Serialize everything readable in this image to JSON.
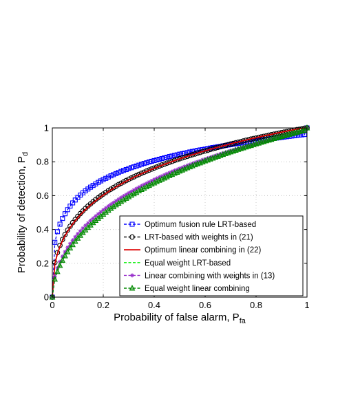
{
  "chart_data": {
    "type": "line",
    "xlabel": "Probability of false alarm, P",
    "xlabel_sub": "fa",
    "ylabel": "Probability of detection, P",
    "ylabel_sub": "d",
    "xlim": [
      0,
      1
    ],
    "ylim": [
      0,
      1
    ],
    "xticks": [
      "0",
      "0.2",
      "0.4",
      "0.6",
      "0.8",
      "1"
    ],
    "yticks": [
      "0",
      "0.2",
      "0.4",
      "0.6",
      "0.8",
      "1"
    ],
    "grid": true,
    "legend_position": "bottom-right",
    "x": [
      0,
      0.01,
      0.02,
      0.03,
      0.04,
      0.05,
      0.06,
      0.07,
      0.08,
      0.09,
      0.1,
      0.11,
      0.12,
      0.13,
      0.14,
      0.15,
      0.16,
      0.17,
      0.18,
      0.19,
      0.2,
      0.21,
      0.22,
      0.23,
      0.24,
      0.25,
      0.26,
      0.27,
      0.28,
      0.29,
      0.3,
      0.31,
      0.32,
      0.33,
      0.34,
      0.35,
      0.36,
      0.37,
      0.38,
      0.39,
      0.4,
      0.41,
      0.42,
      0.43,
      0.44,
      0.45,
      0.46,
      0.47,
      0.48,
      0.49,
      0.5,
      0.51,
      0.52,
      0.53,
      0.54,
      0.55,
      0.56,
      0.57,
      0.58,
      0.59,
      0.6,
      0.61,
      0.62,
      0.63,
      0.64,
      0.65,
      0.66,
      0.67,
      0.68,
      0.69,
      0.7,
      0.71,
      0.72,
      0.73,
      0.74,
      0.75,
      0.76,
      0.77,
      0.78,
      0.79,
      0.8,
      0.81,
      0.82,
      0.83,
      0.84,
      0.85,
      0.86,
      0.87,
      0.88,
      0.89,
      0.9,
      0.91,
      0.92,
      0.93,
      0.94,
      0.95,
      0.96,
      0.97,
      0.98,
      0.99,
      1
    ],
    "series": [
      {
        "name": "Optimum fusion rule LRT-based",
        "color": "#0000ff",
        "dash": "dashed",
        "marker": "square",
        "values": [
          0,
          0.324,
          0.387,
          0.431,
          0.465,
          0.493,
          0.517,
          0.538,
          0.557,
          0.574,
          0.589,
          0.603,
          0.616,
          0.628,
          0.639,
          0.65,
          0.66,
          0.669,
          0.678,
          0.687,
          0.695,
          0.702,
          0.71,
          0.717,
          0.724,
          0.73,
          0.737,
          0.743,
          0.749,
          0.754,
          0.76,
          0.765,
          0.77,
          0.775,
          0.78,
          0.785,
          0.79,
          0.794,
          0.799,
          0.803,
          0.807,
          0.811,
          0.815,
          0.819,
          0.823,
          0.827,
          0.831,
          0.834,
          0.838,
          0.841,
          0.845,
          0.848,
          0.851,
          0.854,
          0.858,
          0.861,
          0.864,
          0.867,
          0.87,
          0.872,
          0.875,
          0.878,
          0.881,
          0.884,
          0.886,
          0.889,
          0.891,
          0.894,
          0.896,
          0.899,
          0.901,
          0.904,
          0.906,
          0.909,
          0.911,
          0.913,
          0.915,
          0.918,
          0.92,
          0.922,
          0.924,
          0.926,
          0.928,
          0.93,
          0.932,
          0.934,
          0.936,
          0.938,
          0.94,
          0.942,
          0.944,
          0.946,
          0.948,
          0.95,
          0.952,
          0.954,
          0.956,
          0.958,
          0.959,
          0.961,
          1
        ]
      },
      {
        "name": "LRT-based with weights in (21)",
        "color": "#000000",
        "dash": "dashed",
        "marker": "circle",
        "values": [
          0,
          0.205,
          0.263,
          0.306,
          0.341,
          0.37,
          0.396,
          0.419,
          0.44,
          0.459,
          0.477,
          0.494,
          0.509,
          0.524,
          0.538,
          0.551,
          0.564,
          0.576,
          0.587,
          0.598,
          0.609,
          0.619,
          0.629,
          0.638,
          0.647,
          0.656,
          0.665,
          0.673,
          0.681,
          0.689,
          0.697,
          0.704,
          0.711,
          0.718,
          0.725,
          0.732,
          0.738,
          0.745,
          0.751,
          0.757,
          0.763,
          0.769,
          0.775,
          0.781,
          0.786,
          0.792,
          0.797,
          0.802,
          0.808,
          0.813,
          0.818,
          0.823,
          0.828,
          0.832,
          0.837,
          0.842,
          0.846,
          0.851,
          0.855,
          0.86,
          0.864,
          0.868,
          0.873,
          0.877,
          0.881,
          0.885,
          0.889,
          0.893,
          0.897,
          0.901,
          0.905,
          0.908,
          0.912,
          0.916,
          0.919,
          0.923,
          0.927,
          0.93,
          0.934,
          0.937,
          0.94,
          0.944,
          0.947,
          0.95,
          0.953,
          0.957,
          0.96,
          0.963,
          0.966,
          0.969,
          0.972,
          0.975,
          0.978,
          0.981,
          0.984,
          0.987,
          0.99,
          0.992,
          0.995,
          0.998,
          1
        ]
      },
      {
        "name": "Optimum linear combining in (22)",
        "color": "#dd0000",
        "dash": "solid",
        "marker": "none",
        "values": [
          0,
          0.198,
          0.255,
          0.298,
          0.333,
          0.362,
          0.388,
          0.411,
          0.432,
          0.451,
          0.469,
          0.486,
          0.502,
          0.517,
          0.531,
          0.544,
          0.557,
          0.569,
          0.581,
          0.592,
          0.603,
          0.613,
          0.623,
          0.633,
          0.642,
          0.651,
          0.66,
          0.668,
          0.677,
          0.685,
          0.693,
          0.7,
          0.708,
          0.715,
          0.722,
          0.729,
          0.736,
          0.742,
          0.749,
          0.755,
          0.761,
          0.767,
          0.773,
          0.779,
          0.785,
          0.79,
          0.796,
          0.801,
          0.807,
          0.812,
          0.817,
          0.822,
          0.827,
          0.832,
          0.837,
          0.842,
          0.846,
          0.851,
          0.856,
          0.86,
          0.865,
          0.869,
          0.873,
          0.878,
          0.882,
          0.886,
          0.89,
          0.894,
          0.898,
          0.902,
          0.906,
          0.91,
          0.914,
          0.917,
          0.921,
          0.925,
          0.928,
          0.932,
          0.936,
          0.939,
          0.942,
          0.946,
          0.949,
          0.953,
          0.956,
          0.959,
          0.962,
          0.966,
          0.969,
          0.972,
          0.975,
          0.978,
          0.981,
          0.984,
          0.987,
          0.99,
          0.993,
          0.995,
          0.998,
          1.0,
          1
        ]
      },
      {
        "name": "Equal weight LRT-based",
        "color": "#00ee00",
        "dash": "dashed",
        "marker": "none",
        "values": [
          0,
          0.124,
          0.172,
          0.209,
          0.241,
          0.268,
          0.293,
          0.315,
          0.336,
          0.356,
          0.374,
          0.391,
          0.407,
          0.423,
          0.437,
          0.452,
          0.465,
          0.478,
          0.491,
          0.503,
          0.515,
          0.526,
          0.537,
          0.548,
          0.558,
          0.568,
          0.578,
          0.588,
          0.597,
          0.606,
          0.615,
          0.624,
          0.632,
          0.641,
          0.649,
          0.657,
          0.665,
          0.672,
          0.68,
          0.687,
          0.695,
          0.702,
          0.709,
          0.715,
          0.722,
          0.729,
          0.735,
          0.742,
          0.748,
          0.754,
          0.76,
          0.766,
          0.772,
          0.778,
          0.783,
          0.789,
          0.795,
          0.8,
          0.805,
          0.811,
          0.816,
          0.821,
          0.826,
          0.831,
          0.836,
          0.841,
          0.846,
          0.851,
          0.855,
          0.86,
          0.865,
          0.869,
          0.874,
          0.878,
          0.882,
          0.887,
          0.891,
          0.895,
          0.899,
          0.904,
          0.908,
          0.912,
          0.916,
          0.92,
          0.924,
          0.928,
          0.931,
          0.935,
          0.939,
          0.943,
          0.946,
          0.95,
          0.954,
          0.957,
          0.961,
          0.964,
          0.968,
          0.971,
          0.975,
          0.978,
          1
        ]
      },
      {
        "name": "Linear combining with weights in (13)",
        "color": "#9933cc",
        "dash": "dashed",
        "marker": "star",
        "values": [
          0,
          0.124,
          0.172,
          0.209,
          0.241,
          0.268,
          0.293,
          0.315,
          0.336,
          0.356,
          0.374,
          0.391,
          0.407,
          0.423,
          0.437,
          0.452,
          0.465,
          0.478,
          0.491,
          0.503,
          0.515,
          0.526,
          0.537,
          0.548,
          0.558,
          0.568,
          0.578,
          0.588,
          0.597,
          0.606,
          0.615,
          0.624,
          0.632,
          0.641,
          0.649,
          0.657,
          0.665,
          0.672,
          0.68,
          0.687,
          0.695,
          0.702,
          0.709,
          0.715,
          0.722,
          0.729,
          0.735,
          0.742,
          0.748,
          0.754,
          0.76,
          0.766,
          0.772,
          0.778,
          0.783,
          0.789,
          0.795,
          0.8,
          0.805,
          0.811,
          0.816,
          0.821,
          0.826,
          0.831,
          0.836,
          0.841,
          0.846,
          0.851,
          0.855,
          0.86,
          0.865,
          0.869,
          0.874,
          0.878,
          0.882,
          0.887,
          0.891,
          0.895,
          0.899,
          0.904,
          0.908,
          0.912,
          0.916,
          0.92,
          0.924,
          0.928,
          0.931,
          0.935,
          0.939,
          0.943,
          0.946,
          0.95,
          0.954,
          0.957,
          0.961,
          0.964,
          0.968,
          0.971,
          0.975,
          0.978,
          1
        ]
      },
      {
        "name": "Equal weight linear combining",
        "color": "#008800",
        "dash": "dashed",
        "marker": "triangle",
        "values": [
          0,
          0.106,
          0.151,
          0.187,
          0.217,
          0.244,
          0.268,
          0.29,
          0.31,
          0.33,
          0.348,
          0.365,
          0.381,
          0.397,
          0.412,
          0.426,
          0.44,
          0.453,
          0.466,
          0.478,
          0.49,
          0.502,
          0.513,
          0.524,
          0.534,
          0.545,
          0.555,
          0.565,
          0.574,
          0.584,
          0.593,
          0.602,
          0.611,
          0.619,
          0.628,
          0.636,
          0.644,
          0.652,
          0.66,
          0.668,
          0.675,
          0.683,
          0.69,
          0.697,
          0.704,
          0.711,
          0.718,
          0.725,
          0.732,
          0.738,
          0.745,
          0.751,
          0.757,
          0.764,
          0.77,
          0.776,
          0.782,
          0.788,
          0.793,
          0.799,
          0.805,
          0.81,
          0.816,
          0.821,
          0.827,
          0.832,
          0.837,
          0.843,
          0.848,
          0.853,
          0.858,
          0.863,
          0.868,
          0.873,
          0.878,
          0.882,
          0.887,
          0.892,
          0.896,
          0.901,
          0.906,
          0.91,
          0.915,
          0.919,
          0.924,
          0.928,
          0.932,
          0.937,
          0.941,
          0.945,
          0.949,
          0.953,
          0.958,
          0.962,
          0.966,
          0.97,
          0.974,
          0.978,
          0.982,
          0.986,
          1
        ]
      }
    ]
  }
}
